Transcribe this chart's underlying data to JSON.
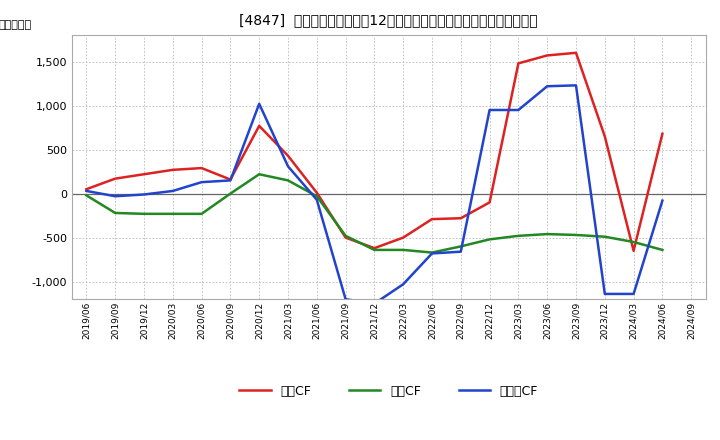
{
  "title": "[4847]  キャッシュフローの12か月移動合計の対前年同期増減額の推移",
  "ylabel": "（百万円）",
  "background_color": "#ffffff",
  "plot_bg_color": "#ffffff",
  "grid_color": "#bbbbbb",
  "dates": [
    "2019/06",
    "2019/09",
    "2019/12",
    "2020/03",
    "2020/06",
    "2020/09",
    "2020/12",
    "2021/03",
    "2021/06",
    "2021/09",
    "2021/12",
    "2022/03",
    "2022/06",
    "2022/09",
    "2022/12",
    "2023/03",
    "2023/06",
    "2023/09",
    "2023/12",
    "2024/03",
    "2024/06",
    "2024/09"
  ],
  "operating_cf": [
    50,
    170,
    220,
    270,
    290,
    160,
    770,
    430,
    10,
    -500,
    -620,
    -500,
    -290,
    -280,
    -100,
    1480,
    1570,
    1600,
    650,
    -650,
    680,
    null
  ],
  "investing_cf": [
    -20,
    -220,
    -230,
    -230,
    -230,
    0,
    220,
    150,
    -30,
    -480,
    -640,
    -640,
    -670,
    -600,
    -520,
    -480,
    -460,
    -470,
    -490,
    -550,
    -640,
    null
  ],
  "free_cf": [
    30,
    -30,
    -10,
    30,
    130,
    150,
    1020,
    310,
    -70,
    -1200,
    -1250,
    -1030,
    -680,
    -660,
    950,
    950,
    1220,
    1230,
    -1140,
    -1140,
    -80,
    null
  ],
  "ylim": [
    -1200,
    1800
  ],
  "yticks": [
    -1000,
    -500,
    0,
    500,
    1000,
    1500
  ],
  "operating_color": "#dd2222",
  "investing_color": "#228822",
  "free_color": "#2244cc",
  "linewidth": 1.8,
  "legend_labels": [
    "営業CF",
    "投資CF",
    "フリーCF"
  ]
}
